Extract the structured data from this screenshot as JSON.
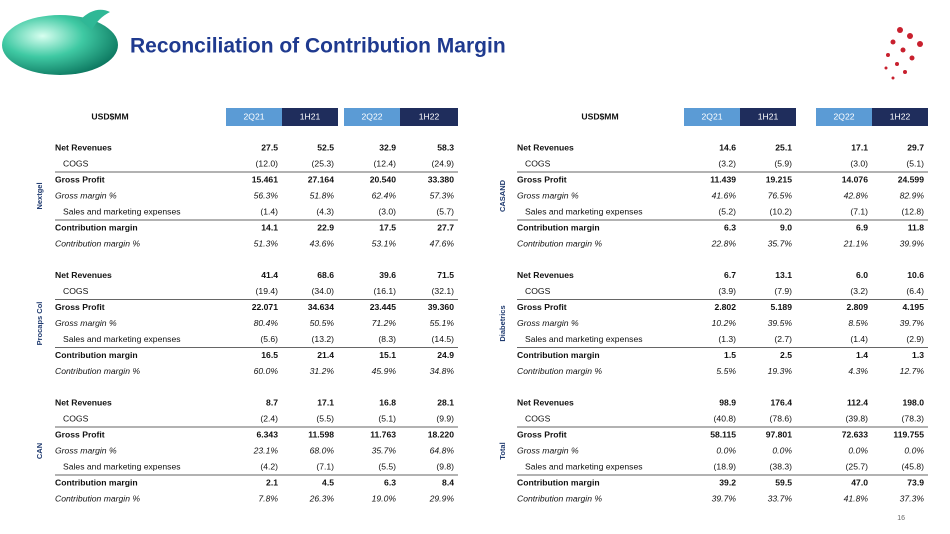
{
  "title": "Reconciliation of Contribution Margin",
  "page_number": "16",
  "tables": [
    {
      "header": "USD$MM",
      "columns": [
        "2Q21",
        "1H21",
        "2Q22",
        "1H22"
      ],
      "sections": [
        {
          "label": "Nextgel",
          "rows": [
            {
              "label": "Net Revenues",
              "values": [
                "27.5",
                "52.5",
                "32.9",
                "58.3"
              ]
            },
            {
              "label": "COGS",
              "values": [
                "(12.0)",
                "(25.3)",
                "(12.4)",
                "(24.9)"
              ]
            },
            {
              "label": "Gross Profit",
              "values": [
                "15.461",
                "27.164",
                "20.540",
                "33.380"
              ]
            },
            {
              "label": "Gross margin %",
              "values": [
                "56.3%",
                "51.8%",
                "62.4%",
                "57.3%"
              ]
            },
            {
              "label": "Sales and marketing expenses",
              "values": [
                "(1.4)",
                "(4.3)",
                "(3.0)",
                "(5.7)"
              ]
            },
            {
              "label": "Contribution margin",
              "values": [
                "14.1",
                "22.9",
                "17.5",
                "27.7"
              ]
            },
            {
              "label": "Contribution margin %",
              "values": [
                "51.3%",
                "43.6%",
                "53.1%",
                "47.6%"
              ]
            }
          ]
        },
        {
          "label": "Procaps Col",
          "rows": [
            {
              "label": "Net Revenues",
              "values": [
                "41.4",
                "68.6",
                "39.6",
                "71.5"
              ]
            },
            {
              "label": "COGS",
              "values": [
                "(19.4)",
                "(34.0)",
                "(16.1)",
                "(32.1)"
              ]
            },
            {
              "label": "Gross Profit",
              "values": [
                "22.071",
                "34.634",
                "23.445",
                "39.360"
              ]
            },
            {
              "label": "Gross margin %",
              "values": [
                "80.4%",
                "50.5%",
                "71.2%",
                "55.1%"
              ]
            },
            {
              "label": "Sales and marketing expenses",
              "values": [
                "(5.6)",
                "(13.2)",
                "(8.3)",
                "(14.5)"
              ]
            },
            {
              "label": "Contribution margin",
              "values": [
                "16.5",
                "21.4",
                "15.1",
                "24.9"
              ]
            },
            {
              "label": "Contribution margin %",
              "values": [
                "60.0%",
                "31.2%",
                "45.9%",
                "34.8%"
              ]
            }
          ]
        },
        {
          "label": "CAN",
          "rows": [
            {
              "label": "Net Revenues",
              "values": [
                "8.7",
                "17.1",
                "16.8",
                "28.1"
              ]
            },
            {
              "label": "COGS",
              "values": [
                "(2.4)",
                "(5.5)",
                "(5.1)",
                "(9.9)"
              ]
            },
            {
              "label": "Gross Profit",
              "values": [
                "6.343",
                "11.598",
                "11.763",
                "18.220"
              ]
            },
            {
              "label": "Gross margin %",
              "values": [
                "23.1%",
                "68.0%",
                "35.7%",
                "64.8%"
              ]
            },
            {
              "label": "Sales and marketing expenses",
              "values": [
                "(4.2)",
                "(7.1)",
                "(5.5)",
                "(9.8)"
              ]
            },
            {
              "label": "Contribution margin",
              "values": [
                "2.1",
                "4.5",
                "6.3",
                "8.4"
              ]
            },
            {
              "label": "Contribution margin %",
              "values": [
                "7.8%",
                "26.3%",
                "19.0%",
                "29.9%"
              ]
            }
          ]
        }
      ]
    },
    {
      "header": "USD$MM",
      "columns": [
        "2Q21",
        "1H21",
        "2Q22",
        "1H22"
      ],
      "sections": [
        {
          "label": "CASAND",
          "rows": [
            {
              "label": "Net Revenues",
              "values": [
                "14.6",
                "25.1",
                "17.1",
                "29.7"
              ]
            },
            {
              "label": "COGS",
              "values": [
                "(3.2)",
                "(5.9)",
                "(3.0)",
                "(5.1)"
              ]
            },
            {
              "label": "Gross Profit",
              "values": [
                "11.439",
                "19.215",
                "14.076",
                "24.599"
              ]
            },
            {
              "label": "Gross margin %",
              "values": [
                "41.6%",
                "76.5%",
                "42.8%",
                "82.9%"
              ]
            },
            {
              "label": "Sales and marketing expenses",
              "values": [
                "(5.2)",
                "(10.2)",
                "(7.1)",
                "(12.8)"
              ]
            },
            {
              "label": "Contribution margin",
              "values": [
                "6.3",
                "9.0",
                "6.9",
                "11.8"
              ]
            },
            {
              "label": "Contribution margin %",
              "values": [
                "22.8%",
                "35.7%",
                "21.1%",
                "39.9%"
              ]
            }
          ]
        },
        {
          "label": "Diabetrics",
          "rows": [
            {
              "label": "Net Revenues",
              "values": [
                "6.7",
                "13.1",
                "6.0",
                "10.6"
              ]
            },
            {
              "label": "COGS",
              "values": [
                "(3.9)",
                "(7.9)",
                "(3.2)",
                "(6.4)"
              ]
            },
            {
              "label": "Gross Profit",
              "values": [
                "2.802",
                "5.189",
                "2.809",
                "4.195"
              ]
            },
            {
              "label": "Gross margin %",
              "values": [
                "10.2%",
                "39.5%",
                "8.5%",
                "39.7%"
              ]
            },
            {
              "label": "Sales and marketing expenses",
              "values": [
                "(1.3)",
                "(2.7)",
                "(1.4)",
                "(2.9)"
              ]
            },
            {
              "label": "Contribution margin",
              "values": [
                "1.5",
                "2.5",
                "1.4",
                "1.3"
              ]
            },
            {
              "label": "Contribution margin %",
              "values": [
                "5.5%",
                "19.3%",
                "4.3%",
                "12.7%"
              ]
            }
          ]
        },
        {
          "label": "Total",
          "rows": [
            {
              "label": "Net Revenues",
              "values": [
                "98.9",
                "176.4",
                "112.4",
                "198.0"
              ]
            },
            {
              "label": "COGS",
              "values": [
                "(40.8)",
                "(78.6)",
                "(39.8)",
                "(78.3)"
              ]
            },
            {
              "label": "Gross Profit",
              "values": [
                "58.115",
                "97.801",
                "72.633",
                "119.755"
              ]
            },
            {
              "label": "Gross margin %",
              "values": [
                "0.0%",
                "0.0%",
                "0.0%",
                "0.0%"
              ]
            },
            {
              "label": "Sales and marketing expenses",
              "values": [
                "(18.9)",
                "(38.3)",
                "(25.7)",
                "(45.8)"
              ]
            },
            {
              "label": "Contribution margin",
              "values": [
                "39.2",
                "59.5",
                "47.0",
                "73.9"
              ]
            },
            {
              "label": "Contribution margin %",
              "values": [
                "39.7%",
                "33.7%",
                "41.8%",
                "37.3%"
              ]
            }
          ]
        }
      ]
    }
  ]
}
